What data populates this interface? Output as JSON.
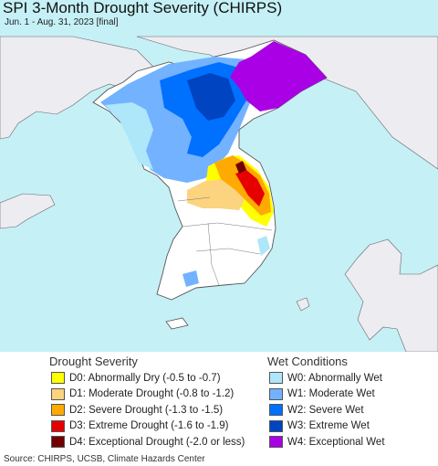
{
  "title": "SPI 3-Month Drought Severity (CHIRPS)",
  "subtitle": "Jun. 1 - Aug. 31, 2023 [final]",
  "colors": {
    "water": "#c5f0f6",
    "land_background": "#ececf1",
    "no_data_land": "#ffffff",
    "border": "#555555"
  },
  "legend": {
    "drought": {
      "heading": "Drought Severity",
      "items": [
        {
          "label": "D0: Abnormally Dry (-0.5 to -0.7)",
          "color": "#ffff00"
        },
        {
          "label": "D1: Moderate Drought (-0.8 to -1.2)",
          "color": "#fcd37f"
        },
        {
          "label": "D2: Severe Drought (-1.3 to -1.5)",
          "color": "#ffaa00"
        },
        {
          "label": "D3: Extreme Drought (-1.6 to -1.9)",
          "color": "#e60000"
        },
        {
          "label": "D4: Exceptional Drought (-2.0 or less)",
          "color": "#730000"
        }
      ]
    },
    "wet": {
      "heading": "Wet Conditions",
      "items": [
        {
          "label": "W0: Abnormally Wet",
          "color": "#aee6fa"
        },
        {
          "label": "W1: Moderate Wet",
          "color": "#73b2ff"
        },
        {
          "label": "W2: Severe Wet",
          "color": "#0070ff"
        },
        {
          "label": "W3: Extreme Wet",
          "color": "#0044c2"
        },
        {
          "label": "W4: Exceptional Wet",
          "color": "#aa00e6"
        }
      ]
    }
  },
  "source": "Source: CHIRPS, UCSB, Climate Hazards Center"
}
